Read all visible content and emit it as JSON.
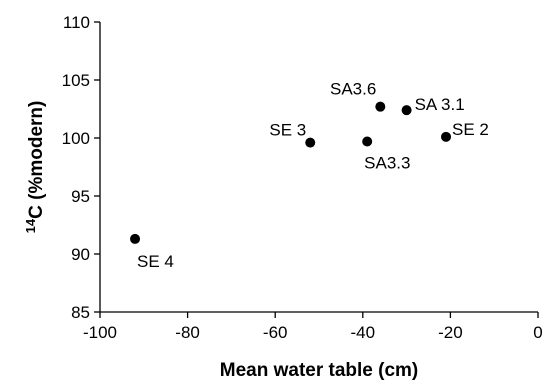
{
  "chart_data": {
    "type": "scatter",
    "title": "",
    "xlabel": "Mean water table (cm)",
    "ylabel_sup": "14",
    "ylabel": "C (%modern)",
    "xlim": [
      -100,
      0
    ],
    "ylim": [
      85,
      110
    ],
    "xticks": [
      -100,
      -80,
      -60,
      -40,
      -20,
      0
    ],
    "yticks": [
      85,
      90,
      95,
      100,
      105,
      110
    ],
    "grid": false,
    "legend": "none",
    "marker_color": "#000000",
    "points": [
      {
        "label": "SE 4",
        "x": -92,
        "y": 91.3
      },
      {
        "label": "SE 3",
        "x": -52,
        "y": 99.6
      },
      {
        "label": "SA3.3",
        "x": -39,
        "y": 99.7
      },
      {
        "label": "SA3.6",
        "x": -36,
        "y": 102.7
      },
      {
        "label": "SA 3.1",
        "x": -30,
        "y": 102.4
      },
      {
        "label": "SE 2",
        "x": -21,
        "y": 100.1
      }
    ]
  }
}
